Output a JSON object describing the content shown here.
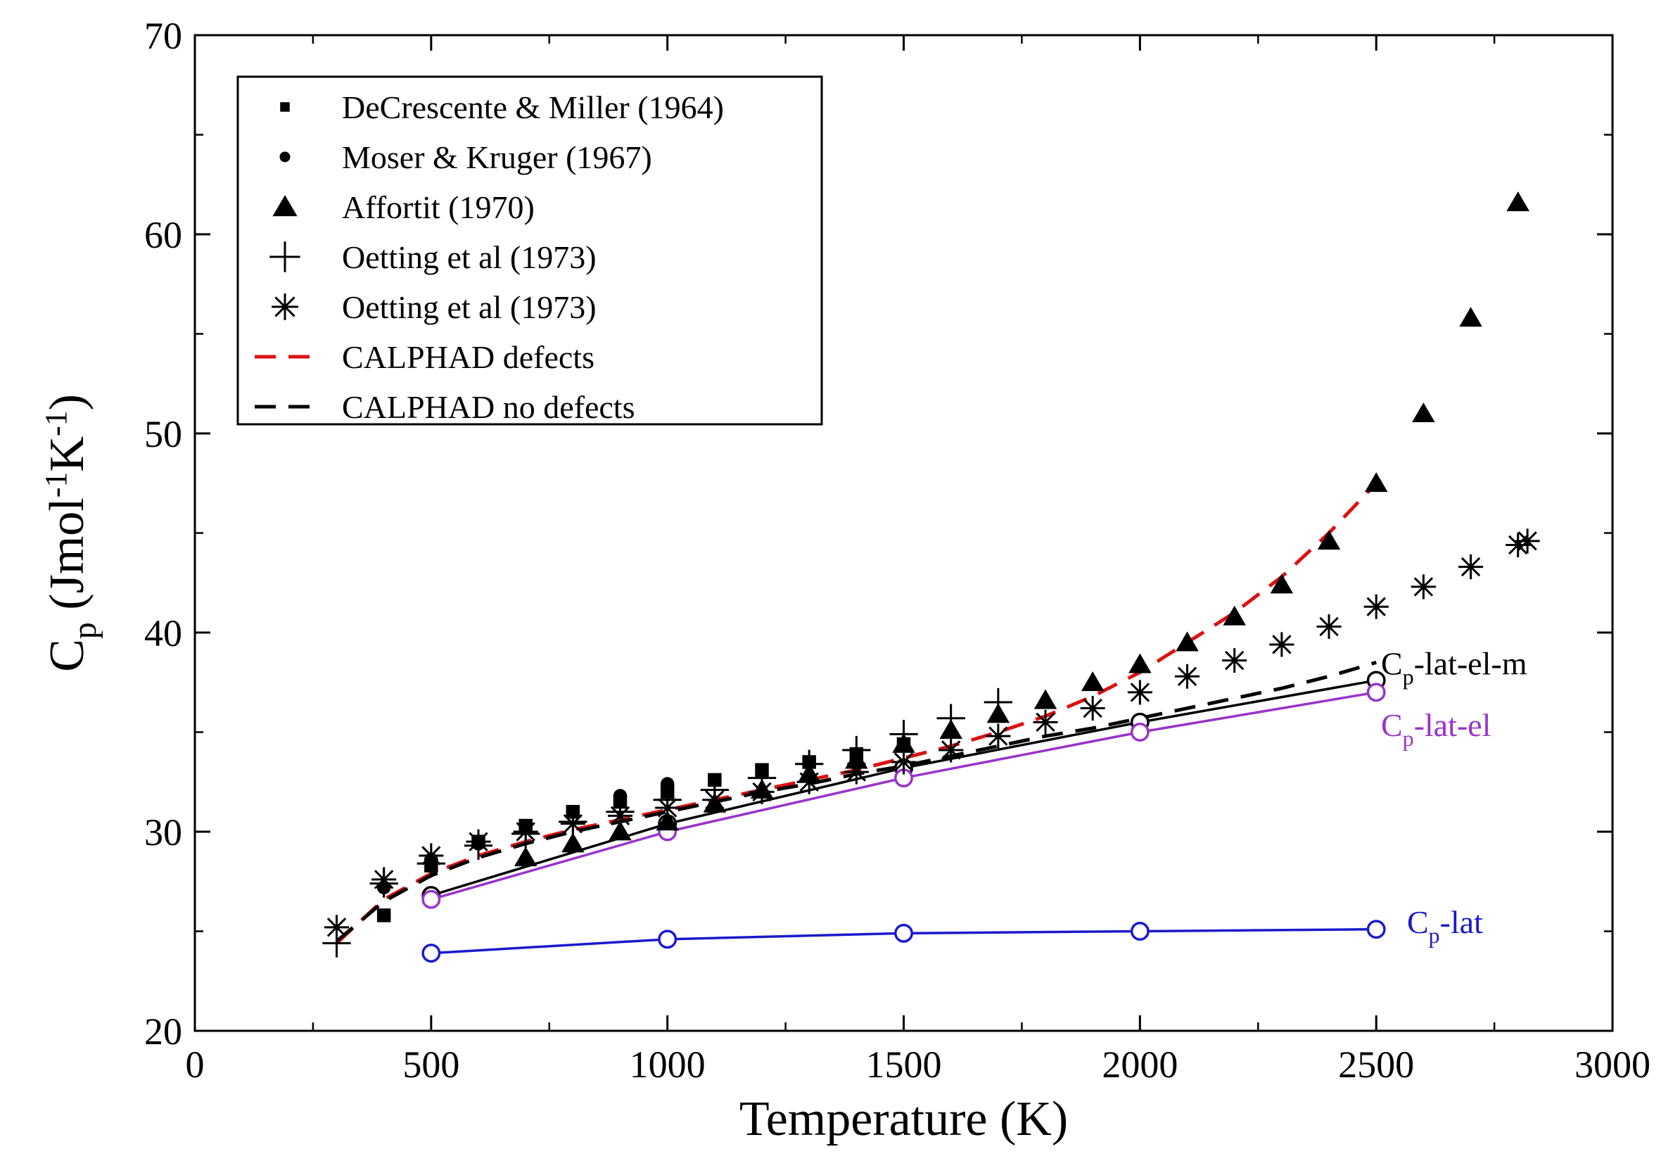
{
  "chart_data": {
    "type": "scatter",
    "xlabel": "Temperature (K)",
    "ylabel": {
      "base": "C",
      "sub": "p",
      "unit_prefix": " (Jmol",
      "exp1": "-1",
      "unit_mid": "K",
      "exp2": "-1",
      "unit_suffix": ")"
    },
    "xlim": [
      0,
      3000
    ],
    "ylim": [
      20,
      70
    ],
    "x_ticks": [
      0,
      500,
      1000,
      1500,
      2000,
      2500,
      3000
    ],
    "y_ticks": [
      20,
      30,
      40,
      50,
      60,
      70
    ],
    "x_tick_labels": [
      "0",
      "500",
      "1000",
      "1500",
      "2000",
      "2500",
      "3000"
    ],
    "y_tick_labels": [
      "20",
      "30",
      "40",
      "50",
      "60",
      "70"
    ],
    "legend_position": "top-left",
    "series": [
      {
        "name": "DeCrescente & Miller (1964)",
        "marker": "square",
        "color": "#000000",
        "x": [
          400,
          500,
          600,
          700,
          800,
          900,
          1000,
          1100,
          1200,
          1300,
          1400,
          1500
        ],
        "y": [
          25.8,
          28.3,
          29.5,
          30.3,
          31.0,
          31.5,
          32.0,
          32.6,
          33.1,
          33.5,
          33.9,
          34.4
        ]
      },
      {
        "name": "Moser & Kruger (1967)",
        "marker": "circle",
        "color": "#000000",
        "x": [
          400,
          500,
          600,
          700,
          800,
          900,
          1000
        ],
        "y": [
          27.2,
          28.6,
          29.4,
          30.2,
          31.0,
          31.8,
          32.4
        ]
      },
      {
        "name": "Affortit (1970)",
        "marker": "triangle",
        "color": "#000000",
        "x": [
          700,
          800,
          900,
          1000,
          1100,
          1200,
          1300,
          1400,
          1500,
          1600,
          1700,
          1800,
          1900,
          2000,
          2100,
          2200,
          2300,
          2400,
          2500,
          2600,
          2700,
          2800
        ],
        "y": [
          28.7,
          29.4,
          30.0,
          30.5,
          31.4,
          32.1,
          32.9,
          33.6,
          34.4,
          35.1,
          35.9,
          36.6,
          37.5,
          38.4,
          39.5,
          40.8,
          42.4,
          44.6,
          47.5,
          51.0,
          55.8,
          61.6
        ]
      },
      {
        "name": "Oetting et al (1973)",
        "marker": "plus",
        "color": "#000000",
        "x": [
          300,
          400,
          500,
          600,
          700,
          800,
          900,
          1000,
          1100,
          1200,
          1300,
          1400,
          1500,
          1600,
          1700
        ],
        "y": [
          24.4,
          27.4,
          28.4,
          29.3,
          29.9,
          30.5,
          31.0,
          31.6,
          32.1,
          32.7,
          33.4,
          34.1,
          34.9,
          35.7,
          36.5
        ]
      },
      {
        "name": "Oetting et al (1973)",
        "marker": "star",
        "color": "#000000",
        "x": [
          300,
          400,
          500,
          600,
          700,
          800,
          900,
          1000,
          1100,
          1200,
          1300,
          1400,
          1500,
          1600,
          1700,
          1800,
          1900,
          2000,
          2100,
          2200,
          2300,
          2400,
          2500,
          2600,
          2700,
          2800,
          2820
        ],
        "y": [
          25.2,
          27.6,
          28.8,
          29.5,
          30.0,
          30.4,
          30.8,
          31.2,
          31.6,
          32.0,
          32.5,
          33.0,
          33.5,
          34.1,
          34.8,
          35.5,
          36.2,
          37.0,
          37.8,
          38.6,
          39.4,
          40.3,
          41.3,
          42.3,
          43.3,
          44.4,
          44.6
        ]
      },
      {
        "name": "CALPHAD defects",
        "line": "dashed",
        "color": "#dd1111",
        "x": [
          300,
          400,
          500,
          600,
          700,
          800,
          900,
          1000,
          1100,
          1200,
          1300,
          1400,
          1500,
          1600,
          1700,
          1800,
          1900,
          2000,
          2100,
          2200,
          2300,
          2400,
          2500
        ],
        "y": [
          24.4,
          26.6,
          27.9,
          28.8,
          29.5,
          30.1,
          30.6,
          31.1,
          31.6,
          32.1,
          32.6,
          33.1,
          33.7,
          34.3,
          35.0,
          35.8,
          36.8,
          38.0,
          39.5,
          41.0,
          42.8,
          45.0,
          47.5
        ]
      },
      {
        "name": "CALPHAD no defects",
        "line": "dashed",
        "color": "#000000",
        "x": [
          300,
          400,
          500,
          600,
          700,
          800,
          900,
          1000,
          1100,
          1200,
          1300,
          1400,
          1500,
          1600,
          1700,
          1800,
          1900,
          2000,
          2100,
          2200,
          2300,
          2400,
          2500
        ],
        "y": [
          24.5,
          26.5,
          27.8,
          28.7,
          29.4,
          30.0,
          30.5,
          31.0,
          31.5,
          32.0,
          32.4,
          32.9,
          33.3,
          33.8,
          34.3,
          34.8,
          35.2,
          35.7,
          36.2,
          36.7,
          37.2,
          37.8,
          38.5
        ]
      },
      {
        "name": "Cp-lat-el-m",
        "line": "solid",
        "marker": "open-circle",
        "color": "#000000",
        "x": [
          500,
          1000,
          1500,
          2000,
          2500
        ],
        "y": [
          26.8,
          30.4,
          33.2,
          35.5,
          37.6
        ]
      },
      {
        "name": "Cp-lat-el",
        "line": "solid",
        "marker": "open-circle",
        "color": "#9933cc",
        "x": [
          500,
          1000,
          1500,
          2000,
          2500
        ],
        "y": [
          26.6,
          30.0,
          32.7,
          35.0,
          37.0
        ]
      },
      {
        "name": "Cp-lat",
        "line": "solid",
        "marker": "open-circle",
        "color": "#1a1acc",
        "x": [
          500,
          1000,
          1500,
          2000,
          2500
        ],
        "y": [
          23.9,
          24.6,
          24.9,
          25.0,
          25.1
        ]
      }
    ],
    "curve_labels": [
      {
        "series": "Cp-lat-el-m",
        "base": "C",
        "sub": "p",
        "text": "-lat-el-m",
        "color": "#000000",
        "x": 2510,
        "y": 38.4
      },
      {
        "series": "Cp-lat-el",
        "base": "C",
        "sub": "p",
        "text": "-lat-el",
        "color": "#9933cc",
        "x": 2510,
        "y": 35.3
      },
      {
        "series": "Cp-lat",
        "base": "C",
        "sub": "p",
        "text": "-lat",
        "color": "#1a1acc",
        "x": 2565,
        "y": 25.4
      }
    ]
  }
}
